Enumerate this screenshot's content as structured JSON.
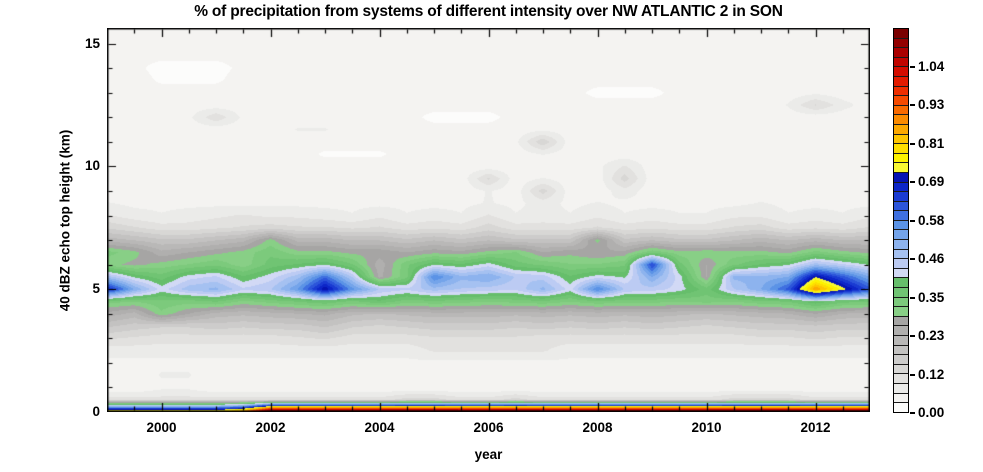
{
  "title": "% of precipitation from systems of different intensity over NW ATLANTIC 2 in SON",
  "axes": {
    "x": {
      "label": "year",
      "min": 1999,
      "max": 2013,
      "major_ticks": [
        "2000",
        "2002",
        "2004",
        "2006",
        "2008",
        "2010",
        "2012"
      ],
      "major_tick_years": [
        2000,
        2002,
        2004,
        2006,
        2008,
        2010,
        2012
      ],
      "minor_step": 0.5
    },
    "y": {
      "label": "40 dBZ echo top height (km)",
      "min": 0,
      "max": 15.64,
      "major_ticks": [
        "0",
        "5",
        "10",
        "15"
      ],
      "major_tick_km": [
        0,
        5,
        10,
        15
      ],
      "minor_step": 1
    }
  },
  "colorbar": {
    "labels": [
      "0.00",
      "0.12",
      "0.23",
      "0.35",
      "0.46",
      "0.58",
      "0.69",
      "0.81",
      "0.93",
      "1.04"
    ],
    "level_step": 0.0289,
    "max_level": 1.156,
    "colors": [
      "#fcfcfb",
      "#f4f3f1",
      "#ebebe9",
      "#e2e1df",
      "#d8d7d5",
      "#cdcccb",
      "#c3c2c1",
      "#b9b8b7",
      "#b0afae",
      "#a6a5a4",
      "#88cf86",
      "#7cca7c",
      "#70c473",
      "#66be6b",
      "#d2d9f5",
      "#bccbf3",
      "#a5c1f1",
      "#8db3ee",
      "#74a4ea",
      "#5b93e6",
      "#3f70e0",
      "#2c55da",
      "#1a3bd2",
      "#0d26c8",
      "#0614b2",
      "#f8f832",
      "#fdf200",
      "#fede00",
      "#fec500",
      "#fca800",
      "#fb8b00",
      "#f96a00",
      "#f64a00",
      "#ee2e00",
      "#e31b00",
      "#d40d00",
      "#c10500",
      "#ab0000",
      "#930000",
      "#7a0000"
    ]
  },
  "chart_data": {
    "type": "heatmap",
    "title": "% of precipitation from systems of different intensity over NW ATLANTIC 2 in SON",
    "xlabel": "year",
    "ylabel": "40 dBZ echo top height (km)",
    "x": [
      1999,
      1999.5,
      2000,
      2000.5,
      2001,
      2001.5,
      2002,
      2002.5,
      2003,
      2003.5,
      2004,
      2004.5,
      2005,
      2005.5,
      2006,
      2006.5,
      2007,
      2007.5,
      2008,
      2008.5,
      2009,
      2009.5,
      2010,
      2010.5,
      2011,
      2011.5,
      2012,
      2012.5,
      2013
    ],
    "y": [
      0,
      0.5,
      1,
      1.5,
      2,
      2.5,
      3,
      3.5,
      4,
      4.5,
      5,
      5.5,
      6,
      6.5,
      7,
      7.5,
      8,
      8.5,
      9,
      9.5,
      10,
      10.5,
      11,
      11.5,
      12,
      12.5,
      13,
      13.5,
      14,
      14.5,
      15,
      15.5
    ],
    "values": [
      [
        0.85,
        0.85,
        0.85,
        0.85,
        0.85,
        0.95,
        1.28,
        1.28,
        1.28,
        1.28,
        1.28,
        1.28,
        1.28,
        1.28,
        1.28,
        1.28,
        1.28,
        1.28,
        1.28,
        1.28,
        1.28,
        1.28,
        1.28,
        1.28,
        1.28,
        1.28,
        1.28,
        1.28,
        1.28
      ],
      [
        0.1,
        0.1,
        0.1,
        0.1,
        0.1,
        0.1,
        0.1,
        0.1,
        0.1,
        0.1,
        0.1,
        0.13,
        0.13,
        0.1,
        0.1,
        0.13,
        0.1,
        0.1,
        0.1,
        0.1,
        0.1,
        0.1,
        0.1,
        0.13,
        0.13,
        0.13,
        0.1,
        0.1,
        0.1
      ],
      [
        0.03,
        0.03,
        0.05,
        0.05,
        0.03,
        0.03,
        0.03,
        0.03,
        0.03,
        0.03,
        0.03,
        0.03,
        0.03,
        0.03,
        0.03,
        0.03,
        0.03,
        0.03,
        0.03,
        0.03,
        0.03,
        0.03,
        0.03,
        0.03,
        0.03,
        0.03,
        0.03,
        0.03,
        0.03
      ],
      [
        0.04,
        0.04,
        0.06,
        0.06,
        0.04,
        0.04,
        0.04,
        0.04,
        0.04,
        0.04,
        0.04,
        0.04,
        0.04,
        0.04,
        0.04,
        0.04,
        0.04,
        0.04,
        0.04,
        0.04,
        0.04,
        0.04,
        0.04,
        0.04,
        0.04,
        0.04,
        0.04,
        0.04,
        0.04
      ],
      [
        0.05,
        0.05,
        0.05,
        0.05,
        0.05,
        0.05,
        0.05,
        0.05,
        0.05,
        0.05,
        0.05,
        0.05,
        0.05,
        0.05,
        0.05,
        0.05,
        0.05,
        0.05,
        0.05,
        0.05,
        0.05,
        0.05,
        0.05,
        0.05,
        0.05,
        0.05,
        0.05,
        0.05,
        0.05
      ],
      [
        0.07,
        0.07,
        0.07,
        0.07,
        0.07,
        0.07,
        0.07,
        0.07,
        0.07,
        0.07,
        0.07,
        0.07,
        0.09,
        0.09,
        0.09,
        0.09,
        0.09,
        0.07,
        0.07,
        0.07,
        0.07,
        0.07,
        0.07,
        0.07,
        0.07,
        0.07,
        0.07,
        0.07,
        0.07
      ],
      [
        0.12,
        0.11,
        0.1,
        0.1,
        0.1,
        0.1,
        0.1,
        0.11,
        0.12,
        0.1,
        0.1,
        0.1,
        0.11,
        0.11,
        0.11,
        0.11,
        0.1,
        0.1,
        0.1,
        0.1,
        0.1,
        0.1,
        0.1,
        0.1,
        0.11,
        0.11,
        0.12,
        0.11,
        0.11
      ],
      [
        0.18,
        0.16,
        0.15,
        0.15,
        0.16,
        0.15,
        0.16,
        0.16,
        0.18,
        0.15,
        0.14,
        0.15,
        0.16,
        0.16,
        0.16,
        0.15,
        0.16,
        0.15,
        0.16,
        0.15,
        0.16,
        0.15,
        0.14,
        0.15,
        0.16,
        0.16,
        0.17,
        0.16,
        0.16
      ],
      [
        0.25,
        0.22,
        0.31,
        0.26,
        0.22,
        0.21,
        0.22,
        0.23,
        0.24,
        0.21,
        0.2,
        0.21,
        0.22,
        0.22,
        0.22,
        0.21,
        0.22,
        0.21,
        0.22,
        0.21,
        0.22,
        0.21,
        0.2,
        0.21,
        0.22,
        0.23,
        0.26,
        0.23,
        0.22
      ],
      [
        0.33,
        0.32,
        0.34,
        0.33,
        0.35,
        0.31,
        0.33,
        0.35,
        0.37,
        0.34,
        0.37,
        0.33,
        0.34,
        0.33,
        0.32,
        0.33,
        0.34,
        0.32,
        0.34,
        0.33,
        0.33,
        0.32,
        0.33,
        0.32,
        0.34,
        0.35,
        0.4,
        0.36,
        0.35
      ],
      [
        0.68,
        0.52,
        0.42,
        0.48,
        0.5,
        0.44,
        0.46,
        0.55,
        0.72,
        0.56,
        0.46,
        0.44,
        0.48,
        0.46,
        0.45,
        0.44,
        0.5,
        0.42,
        0.58,
        0.46,
        0.45,
        0.42,
        0.36,
        0.46,
        0.52,
        0.62,
        0.87,
        0.74,
        0.62
      ],
      [
        0.48,
        0.4,
        0.36,
        0.42,
        0.44,
        0.38,
        0.42,
        0.48,
        0.6,
        0.46,
        0.25,
        0.34,
        0.58,
        0.5,
        0.52,
        0.46,
        0.45,
        0.38,
        0.42,
        0.4,
        0.52,
        0.42,
        0.26,
        0.5,
        0.5,
        0.52,
        0.72,
        0.62,
        0.52
      ],
      [
        0.3,
        0.28,
        0.3,
        0.32,
        0.34,
        0.3,
        0.36,
        0.38,
        0.4,
        0.35,
        0.24,
        0.34,
        0.4,
        0.38,
        0.42,
        0.36,
        0.34,
        0.32,
        0.32,
        0.34,
        0.64,
        0.36,
        0.26,
        0.34,
        0.38,
        0.4,
        0.48,
        0.44,
        0.4
      ],
      [
        0.33,
        0.3,
        0.24,
        0.26,
        0.28,
        0.3,
        0.34,
        0.3,
        0.3,
        0.28,
        0.28,
        0.26,
        0.28,
        0.27,
        0.3,
        0.32,
        0.26,
        0.28,
        0.26,
        0.27,
        0.34,
        0.3,
        0.31,
        0.3,
        0.3,
        0.28,
        0.33,
        0.3,
        0.28
      ],
      [
        0.22,
        0.2,
        0.18,
        0.18,
        0.2,
        0.22,
        0.3,
        0.22,
        0.22,
        0.2,
        0.2,
        0.18,
        0.2,
        0.18,
        0.2,
        0.18,
        0.18,
        0.18,
        0.3,
        0.18,
        0.2,
        0.18,
        0.18,
        0.2,
        0.22,
        0.2,
        0.22,
        0.2,
        0.2
      ],
      [
        0.14,
        0.12,
        0.1,
        0.1,
        0.11,
        0.12,
        0.13,
        0.12,
        0.12,
        0.11,
        0.12,
        0.1,
        0.11,
        0.1,
        0.13,
        0.1,
        0.1,
        0.1,
        0.12,
        0.1,
        0.11,
        0.1,
        0.1,
        0.12,
        0.13,
        0.1,
        0.11,
        0.1,
        0.12
      ],
      [
        0.09,
        0.07,
        0.06,
        0.07,
        0.08,
        0.09,
        0.08,
        0.08,
        0.07,
        0.06,
        0.08,
        0.06,
        0.07,
        0.06,
        0.09,
        0.06,
        0.07,
        0.06,
        0.08,
        0.06,
        0.07,
        0.06,
        0.06,
        0.08,
        0.08,
        0.06,
        0.07,
        0.06,
        0.08
      ],
      [
        0.06,
        0.05,
        0.05,
        0.05,
        0.05,
        0.05,
        0.05,
        0.05,
        0.05,
        0.05,
        0.05,
        0.05,
        0.05,
        0.05,
        0.06,
        0.05,
        0.07,
        0.05,
        0.06,
        0.05,
        0.05,
        0.05,
        0.05,
        0.05,
        0.06,
        0.05,
        0.05,
        0.05,
        0.05
      ],
      [
        0.04,
        0.04,
        0.04,
        0.04,
        0.04,
        0.04,
        0.04,
        0.04,
        0.04,
        0.04,
        0.04,
        0.055,
        0.055,
        0.04,
        0.06,
        0.04,
        0.13,
        0.04,
        0.04,
        0.075,
        0.04,
        0.04,
        0.04,
        0.04,
        0.04,
        0.04,
        0.04,
        0.04,
        0.04
      ],
      [
        0.04,
        0.04,
        0.04,
        0.04,
        0.04,
        0.04,
        0.04,
        0.04,
        0.04,
        0.04,
        0.04,
        0.04,
        0.04,
        0.04,
        0.12,
        0.04,
        0.06,
        0.04,
        0.04,
        0.13,
        0.04,
        0.04,
        0.04,
        0.04,
        0.04,
        0.04,
        0.04,
        0.04,
        0.04
      ],
      [
        0.04,
        0.04,
        0.04,
        0.04,
        0.04,
        0.04,
        0.04,
        0.04,
        0.04,
        0.04,
        0.04,
        0.04,
        0.04,
        0.04,
        0.04,
        0.04,
        0.04,
        0.04,
        0.05,
        0.09,
        0.04,
        0.04,
        0.04,
        0.04,
        0.04,
        0.04,
        0.04,
        0.04,
        0.04
      ],
      [
        0.04,
        0.04,
        0.04,
        0.04,
        0.04,
        0.04,
        0.04,
        0.04,
        0.025,
        0.025,
        0.025,
        0.04,
        0.04,
        0.04,
        0.04,
        0.04,
        0.06,
        0.04,
        0.04,
        0.04,
        0.04,
        0.04,
        0.04,
        0.04,
        0.04,
        0.04,
        0.04,
        0.04,
        0.04
      ],
      [
        0.04,
        0.04,
        0.04,
        0.04,
        0.04,
        0.04,
        0.04,
        0.04,
        0.04,
        0.04,
        0.04,
        0.04,
        0.04,
        0.04,
        0.04,
        0.05,
        0.14,
        0.04,
        0.04,
        0.04,
        0.04,
        0.04,
        0.04,
        0.04,
        0.04,
        0.04,
        0.04,
        0.04,
        0.04
      ],
      [
        0.04,
        0.04,
        0.04,
        0.04,
        0.04,
        0.04,
        0.04,
        0.06,
        0.06,
        0.04,
        0.04,
        0.04,
        0.04,
        0.04,
        0.04,
        0.04,
        0.05,
        0.04,
        0.04,
        0.04,
        0.04,
        0.04,
        0.04,
        0.04,
        0.04,
        0.04,
        0.04,
        0.04,
        0.04
      ],
      [
        0.04,
        0.04,
        0.04,
        0.05,
        0.11,
        0.05,
        0.04,
        0.04,
        0.04,
        0.04,
        0.04,
        0.04,
        0.02,
        0.02,
        0.02,
        0.04,
        0.04,
        0.04,
        0.04,
        0.04,
        0.04,
        0.04,
        0.04,
        0.04,
        0.04,
        0.04,
        0.04,
        0.04,
        0.04
      ],
      [
        0.04,
        0.04,
        0.04,
        0.04,
        0.04,
        0.04,
        0.04,
        0.04,
        0.04,
        0.04,
        0.04,
        0.04,
        0.04,
        0.04,
        0.04,
        0.04,
        0.04,
        0.04,
        0.04,
        0.04,
        0.04,
        0.04,
        0.04,
        0.04,
        0.04,
        0.06,
        0.12,
        0.07,
        0.04
      ],
      [
        0.04,
        0.04,
        0.04,
        0.04,
        0.04,
        0.04,
        0.04,
        0.04,
        0.04,
        0.04,
        0.04,
        0.04,
        0.04,
        0.04,
        0.04,
        0.04,
        0.04,
        0.04,
        0.02,
        0.02,
        0.02,
        0.04,
        0.04,
        0.04,
        0.04,
        0.04,
        0.05,
        0.04,
        0.04
      ],
      [
        0.04,
        0.04,
        0.025,
        0.025,
        0.025,
        0.04,
        0.04,
        0.04,
        0.04,
        0.04,
        0.04,
        0.04,
        0.04,
        0.04,
        0.04,
        0.04,
        0.04,
        0.04,
        0.04,
        0.04,
        0.04,
        0.04,
        0.04,
        0.04,
        0.04,
        0.04,
        0.04,
        0.04,
        0.04
      ],
      [
        0.035,
        0.035,
        0.02,
        0.02,
        0.02,
        0.035,
        0.035,
        0.035,
        0.035,
        0.035,
        0.035,
        0.035,
        0.035,
        0.035,
        0.035,
        0.035,
        0.035,
        0.035,
        0.035,
        0.035,
        0.035,
        0.035,
        0.035,
        0.035,
        0.035,
        0.035,
        0.035,
        0.035,
        0.035
      ],
      [
        0.035,
        0.035,
        0.035,
        0.035,
        0.035,
        0.035,
        0.035,
        0.035,
        0.035,
        0.035,
        0.035,
        0.035,
        0.035,
        0.035,
        0.035,
        0.035,
        0.035,
        0.035,
        0.035,
        0.035,
        0.035,
        0.035,
        0.035,
        0.035,
        0.035,
        0.035,
        0.035,
        0.035,
        0.035
      ],
      [
        0.035,
        0.035,
        0.035,
        0.035,
        0.035,
        0.035,
        0.035,
        0.035,
        0.035,
        0.035,
        0.035,
        0.035,
        0.035,
        0.035,
        0.035,
        0.035,
        0.035,
        0.035,
        0.035,
        0.035,
        0.035,
        0.035,
        0.035,
        0.035,
        0.035,
        0.035,
        0.035,
        0.035,
        0.035
      ],
      [
        0.035,
        0.035,
        0.035,
        0.035,
        0.035,
        0.035,
        0.035,
        0.035,
        0.035,
        0.035,
        0.035,
        0.035,
        0.035,
        0.035,
        0.035,
        0.035,
        0.035,
        0.035,
        0.035,
        0.035,
        0.035,
        0.035,
        0.035,
        0.035,
        0.035,
        0.035,
        0.035,
        0.035,
        0.035
      ]
    ]
  }
}
